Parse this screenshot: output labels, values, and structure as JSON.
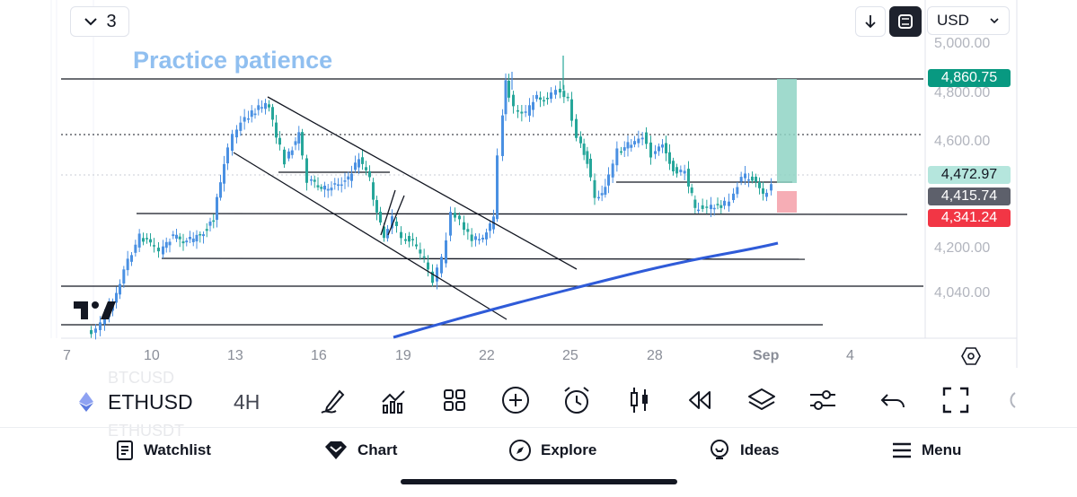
{
  "layout_count": {
    "value": "3"
  },
  "annotation": {
    "text": "Practice patience"
  },
  "currency": {
    "value": "USD"
  },
  "price_labels": {
    "target": "4,860.75",
    "current": "4,472.97",
    "entry": "4,415.74",
    "stop": "4,341.24"
  },
  "price_ticks": [
    "5,000.00",
    "4,800.00",
    "4,600.00",
    "4,200.00",
    "4,040.00"
  ],
  "date_ticks": [
    "7",
    "10",
    "13",
    "16",
    "19",
    "22",
    "25",
    "28",
    "Sep",
    "4"
  ],
  "symbol": {
    "name": "ETHUSD",
    "interval": "4H",
    "ghost_above": "BTCUSD",
    "ghost_below": "ETHUSDT"
  },
  "toolbar": {
    "icons": [
      "pen-icon",
      "indicators-icon",
      "grid-icon",
      "add-icon",
      "alarm-icon",
      "candles-icon",
      "replay-icon",
      "layers-icon",
      "settings-sliders-icon",
      "undo-icon",
      "fullscreen-icon"
    ]
  },
  "bottom_nav": [
    {
      "label": "Watchlist",
      "icon": "watchlist-icon"
    },
    {
      "label": "Chart",
      "icon": "chart-icon"
    },
    {
      "label": "Explore",
      "icon": "compass-icon"
    },
    {
      "label": "Ideas",
      "icon": "bulb-icon"
    },
    {
      "label": "Menu",
      "icon": "menu-icon"
    }
  ],
  "colors": {
    "up": "#4a90e2",
    "down": "#26a69a",
    "target_label": "#089981",
    "stop_label": "#f23645",
    "entry_label": "#5d606b",
    "current_label": "#b5e6dd",
    "annotation": "#90bff0",
    "trend_line": "#2f5bd8",
    "reward_zone": "#8fd4c4",
    "risk_zone": "#f5a4ad"
  }
}
